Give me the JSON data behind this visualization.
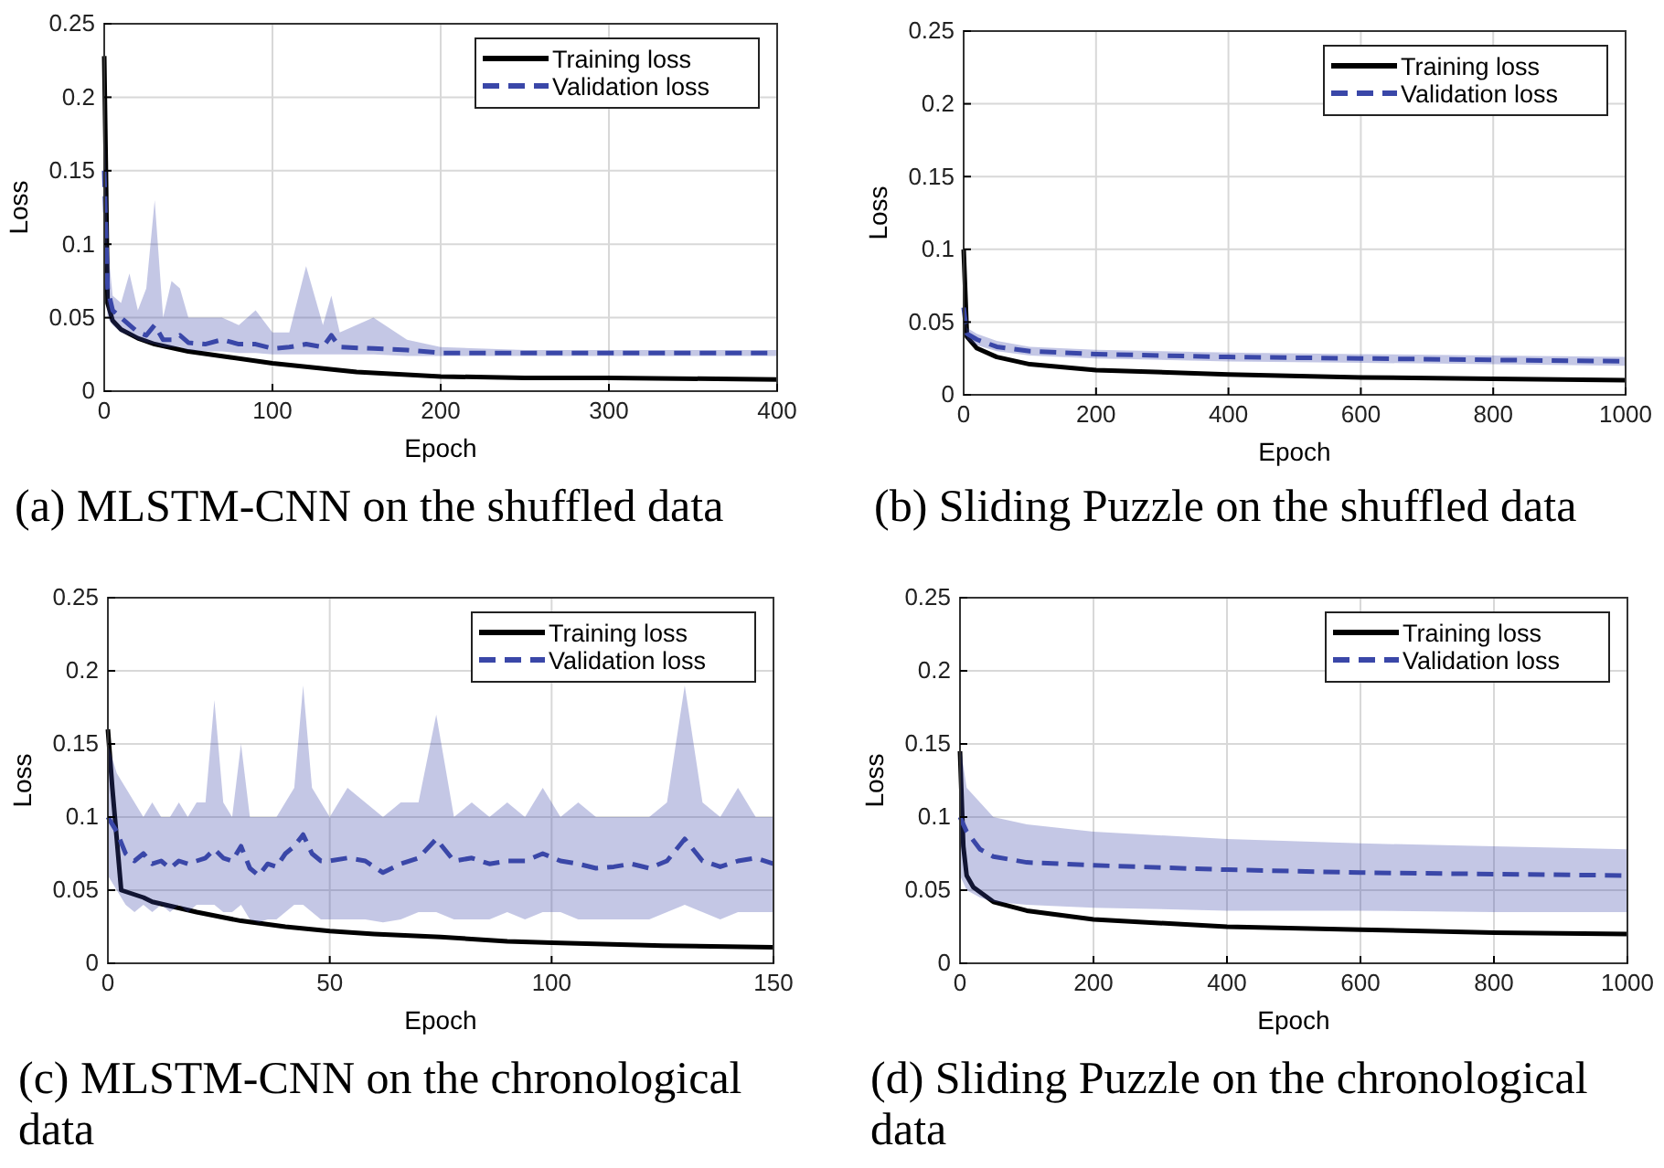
{
  "chart_data": [
    {
      "type": "line",
      "title": "(a) MLSTM-CNN on the shuffled data",
      "xlabel": "Epoch",
      "ylabel": "Loss",
      "xlim": [
        0,
        400
      ],
      "xticks": [
        0,
        100,
        200,
        300,
        400
      ],
      "ylim": [
        0,
        0.25
      ],
      "yticks": [
        0,
        0.05,
        0.1,
        0.15,
        0.2,
        0.25
      ],
      "grid": true,
      "legend": "top right",
      "series": [
        {
          "name": "Training loss",
          "color": "#000000",
          "line_style": "solid",
          "x": [
            0,
            1,
            2,
            5,
            10,
            20,
            30,
            50,
            75,
            100,
            150,
            200,
            250,
            300,
            400
          ],
          "values": [
            0.228,
            0.15,
            0.06,
            0.048,
            0.042,
            0.036,
            0.032,
            0.027,
            0.023,
            0.019,
            0.013,
            0.01,
            0.009,
            0.009,
            0.008
          ]
        },
        {
          "name": "Validation loss",
          "color": "#3a47a8",
          "line_style": "dashed",
          "x": [
            0,
            2,
            5,
            10,
            15,
            20,
            25,
            30,
            35,
            40,
            45,
            50,
            60,
            70,
            80,
            90,
            100,
            110,
            120,
            130,
            135,
            140,
            160,
            180,
            200,
            250,
            300,
            400
          ],
          "values": [
            0.15,
            0.07,
            0.055,
            0.05,
            0.045,
            0.04,
            0.038,
            0.045,
            0.035,
            0.035,
            0.038,
            0.033,
            0.032,
            0.035,
            0.032,
            0.032,
            0.029,
            0.03,
            0.032,
            0.03,
            0.038,
            0.03,
            0.029,
            0.028,
            0.026,
            0.026,
            0.026,
            0.026
          ],
          "upper": [
            0.2,
            0.1,
            0.065,
            0.06,
            0.08,
            0.055,
            0.07,
            0.13,
            0.05,
            0.075,
            0.07,
            0.05,
            0.05,
            0.05,
            0.045,
            0.055,
            0.04,
            0.04,
            0.085,
            0.045,
            0.065,
            0.04,
            0.05,
            0.035,
            0.03,
            0.028,
            0.028,
            0.028
          ],
          "lower": [
            0.1,
            0.05,
            0.045,
            0.04,
            0.038,
            0.035,
            0.033,
            0.032,
            0.03,
            0.03,
            0.03,
            0.028,
            0.027,
            0.027,
            0.026,
            0.026,
            0.025,
            0.025,
            0.025,
            0.025,
            0.025,
            0.025,
            0.025,
            0.024,
            0.024,
            0.024,
            0.024,
            0.024
          ]
        }
      ]
    },
    {
      "type": "line",
      "title": "(b) Sliding Puzzle on the shuffled data",
      "xlabel": "Epoch",
      "ylabel": "Loss",
      "xlim": [
        0,
        1000
      ],
      "xticks": [
        0,
        200,
        400,
        600,
        800,
        1000
      ],
      "ylim": [
        0,
        0.25
      ],
      "yticks": [
        0,
        0.05,
        0.1,
        0.15,
        0.2,
        0.25
      ],
      "grid": true,
      "legend": "top right",
      "series": [
        {
          "name": "Training loss",
          "color": "#000000",
          "line_style": "solid",
          "x": [
            0,
            5,
            20,
            50,
            100,
            200,
            400,
            600,
            800,
            1000
          ],
          "values": [
            0.1,
            0.04,
            0.032,
            0.026,
            0.021,
            0.017,
            0.014,
            0.012,
            0.011,
            0.01
          ]
        },
        {
          "name": "Validation loss",
          "color": "#3a47a8",
          "line_style": "dashed",
          "x": [
            0,
            5,
            20,
            50,
            100,
            200,
            400,
            600,
            800,
            1000
          ],
          "values": [
            0.06,
            0.042,
            0.038,
            0.033,
            0.03,
            0.028,
            0.026,
            0.025,
            0.024,
            0.023
          ],
          "upper": [
            0.065,
            0.046,
            0.042,
            0.037,
            0.033,
            0.031,
            0.029,
            0.028,
            0.027,
            0.026
          ],
          "lower": [
            0.055,
            0.038,
            0.034,
            0.03,
            0.027,
            0.025,
            0.023,
            0.022,
            0.021,
            0.02
          ]
        }
      ]
    },
    {
      "type": "line",
      "title": "(c) MLSTM-CNN on the chronological data",
      "xlabel": "Epoch",
      "ylabel": "Loss",
      "xlim": [
        0,
        150
      ],
      "xticks": [
        0,
        50,
        100,
        150
      ],
      "ylim": [
        0,
        0.25
      ],
      "yticks": [
        0,
        0.05,
        0.1,
        0.15,
        0.2,
        0.25
      ],
      "grid": true,
      "legend": "top right",
      "series": [
        {
          "name": "Training loss",
          "color": "#000000",
          "line_style": "solid",
          "x": [
            0,
            1,
            3,
            8,
            10,
            20,
            30,
            40,
            50,
            60,
            75,
            90,
            100,
            125,
            150
          ],
          "values": [
            0.16,
            0.12,
            0.05,
            0.045,
            0.042,
            0.035,
            0.029,
            0.025,
            0.022,
            0.02,
            0.018,
            0.015,
            0.014,
            0.012,
            0.011
          ]
        },
        {
          "name": "Validation loss",
          "color": "#3a47a8",
          "line_style": "dashed",
          "x": [
            0,
            2,
            4,
            6,
            8,
            10,
            12,
            14,
            16,
            18,
            20,
            22,
            24,
            26,
            28,
            30,
            32,
            34,
            36,
            38,
            40,
            42,
            44,
            46,
            48,
            50,
            54,
            58,
            62,
            66,
            70,
            74,
            78,
            82,
            86,
            90,
            94,
            98,
            102,
            106,
            110,
            114,
            118,
            122,
            126,
            130,
            134,
            138,
            142,
            146,
            150
          ],
          "values": [
            0.1,
            0.09,
            0.075,
            0.07,
            0.075,
            0.068,
            0.07,
            0.065,
            0.07,
            0.068,
            0.07,
            0.072,
            0.078,
            0.072,
            0.07,
            0.08,
            0.065,
            0.06,
            0.068,
            0.066,
            0.075,
            0.08,
            0.088,
            0.075,
            0.07,
            0.07,
            0.072,
            0.07,
            0.062,
            0.068,
            0.072,
            0.085,
            0.07,
            0.072,
            0.068,
            0.07,
            0.07,
            0.075,
            0.07,
            0.068,
            0.065,
            0.066,
            0.068,
            0.065,
            0.07,
            0.085,
            0.07,
            0.066,
            0.07,
            0.072,
            0.068
          ],
          "upper": [
            0.15,
            0.13,
            0.12,
            0.11,
            0.1,
            0.11,
            0.1,
            0.1,
            0.11,
            0.1,
            0.11,
            0.11,
            0.18,
            0.11,
            0.1,
            0.15,
            0.1,
            0.1,
            0.1,
            0.1,
            0.11,
            0.12,
            0.19,
            0.12,
            0.11,
            0.1,
            0.12,
            0.11,
            0.1,
            0.11,
            0.11,
            0.17,
            0.1,
            0.11,
            0.1,
            0.11,
            0.1,
            0.12,
            0.1,
            0.11,
            0.1,
            0.1,
            0.1,
            0.1,
            0.11,
            0.19,
            0.11,
            0.1,
            0.12,
            0.1,
            0.1
          ],
          "lower": [
            0.06,
            0.05,
            0.04,
            0.035,
            0.04,
            0.035,
            0.04,
            0.035,
            0.04,
            0.035,
            0.04,
            0.04,
            0.04,
            0.035,
            0.035,
            0.04,
            0.03,
            0.028,
            0.03,
            0.03,
            0.035,
            0.04,
            0.04,
            0.035,
            0.03,
            0.03,
            0.03,
            0.03,
            0.028,
            0.03,
            0.035,
            0.035,
            0.03,
            0.03,
            0.03,
            0.035,
            0.03,
            0.035,
            0.035,
            0.03,
            0.03,
            0.03,
            0.03,
            0.03,
            0.035,
            0.04,
            0.035,
            0.03,
            0.035,
            0.035,
            0.035
          ]
        }
      ]
    },
    {
      "type": "line",
      "title": "(d) Sliding Puzzle on the chronological data",
      "xlabel": "Epoch",
      "ylabel": "Loss",
      "xlim": [
        0,
        1000
      ],
      "xticks": [
        0,
        200,
        400,
        600,
        800,
        1000
      ],
      "ylim": [
        0,
        0.25
      ],
      "yticks": [
        0,
        0.05,
        0.1,
        0.15,
        0.2,
        0.25
      ],
      "grid": true,
      "legend": "top right",
      "series": [
        {
          "name": "Training loss",
          "color": "#000000",
          "line_style": "solid",
          "x": [
            0,
            5,
            10,
            20,
            50,
            100,
            200,
            400,
            600,
            800,
            1000
          ],
          "values": [
            0.145,
            0.08,
            0.06,
            0.052,
            0.042,
            0.036,
            0.03,
            0.025,
            0.023,
            0.021,
            0.02
          ]
        },
        {
          "name": "Validation loss",
          "color": "#3a47a8",
          "line_style": "dashed",
          "x": [
            0,
            10,
            30,
            50,
            100,
            200,
            400,
            600,
            800,
            1000
          ],
          "values": [
            0.1,
            0.09,
            0.078,
            0.073,
            0.069,
            0.067,
            0.064,
            0.062,
            0.061,
            0.06
          ],
          "upper": [
            0.15,
            0.12,
            0.11,
            0.1,
            0.095,
            0.09,
            0.085,
            0.082,
            0.08,
            0.078
          ],
          "lower": [
            0.06,
            0.05,
            0.045,
            0.042,
            0.04,
            0.038,
            0.036,
            0.036,
            0.035,
            0.035
          ]
        }
      ]
    }
  ]
}
